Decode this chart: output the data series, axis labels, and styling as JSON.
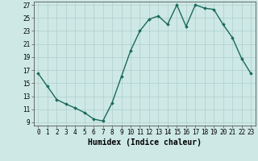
{
  "x": [
    0,
    1,
    2,
    3,
    4,
    5,
    6,
    7,
    8,
    9,
    10,
    11,
    12,
    13,
    14,
    15,
    16,
    17,
    18,
    19,
    20,
    21,
    22,
    23
  ],
  "y": [
    16.5,
    14.5,
    12.5,
    11.8,
    11.2,
    10.5,
    9.5,
    9.2,
    12.0,
    16.0,
    20.0,
    23.0,
    24.8,
    25.3,
    24.0,
    27.0,
    23.7,
    27.0,
    26.5,
    26.3,
    24.0,
    22.0,
    18.8,
    16.5
  ],
  "line_color": "#1a6b5a",
  "marker": "D",
  "markersize": 1.8,
  "linewidth": 1.0,
  "xlabel": "Humidex (Indice chaleur)",
  "xlabel_fontsize": 7,
  "xlim": [
    -0.5,
    23.5
  ],
  "ylim": [
    8.5,
    27.5
  ],
  "yticks": [
    9,
    11,
    13,
    15,
    17,
    19,
    21,
    23,
    25,
    27
  ],
  "xticks": [
    0,
    1,
    2,
    3,
    4,
    5,
    6,
    7,
    8,
    9,
    10,
    11,
    12,
    13,
    14,
    15,
    16,
    17,
    18,
    19,
    20,
    21,
    22,
    23
  ],
  "tick_fontsize": 5.5,
  "bg_color": "#cde8e5",
  "grid_color": "#b0cfcc",
  "spine_color": "#555555"
}
